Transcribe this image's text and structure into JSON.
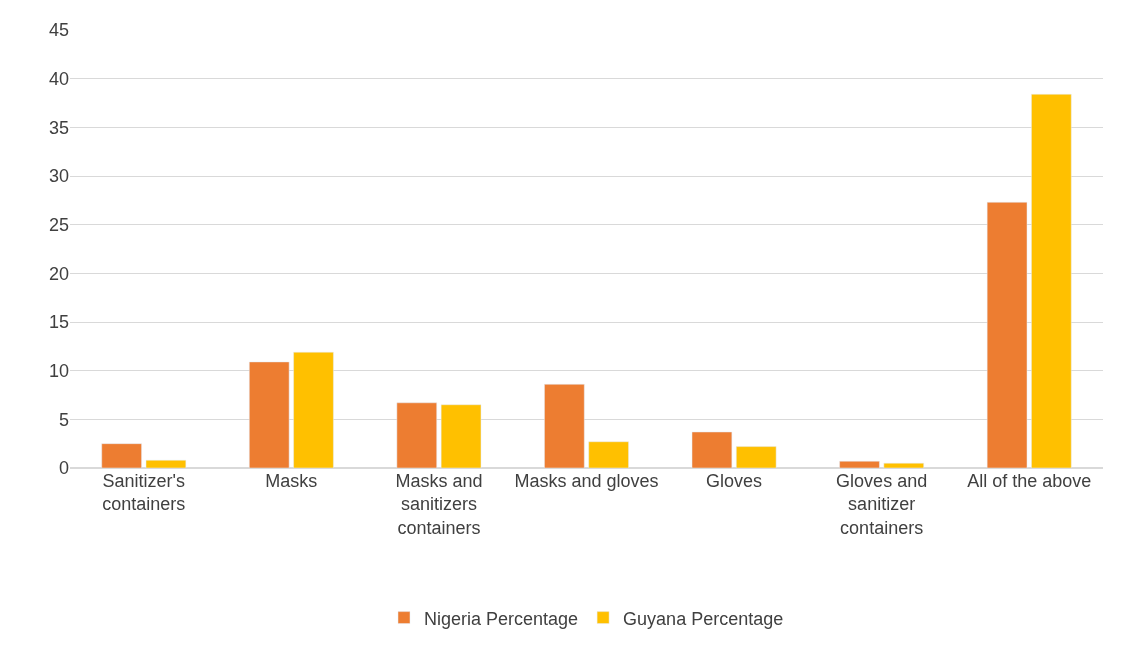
{
  "chart_data": {
    "type": "bar",
    "categories": [
      "Sanitizer's containers",
      "Masks",
      "Masks and sanitizers containers",
      "Masks and gloves",
      "Gloves",
      "Gloves and sanitizer containers",
      "All of the above"
    ],
    "series": [
      {
        "name": "Nigeria Percentage",
        "color": "#ed7d31",
        "values": [
          2.5,
          10.9,
          6.7,
          8.6,
          3.7,
          0.7,
          27.3
        ]
      },
      {
        "name": "Guyana Percentage",
        "color": "#ffc000",
        "values": [
          0.8,
          11.9,
          6.5,
          2.7,
          2.2,
          0.5,
          38.4
        ]
      }
    ],
    "ylim": [
      0,
      45
    ],
    "yticks": [
      0,
      5,
      10,
      15,
      20,
      25,
      30,
      35,
      40,
      45
    ],
    "grid": "y",
    "legend": "bottom"
  }
}
